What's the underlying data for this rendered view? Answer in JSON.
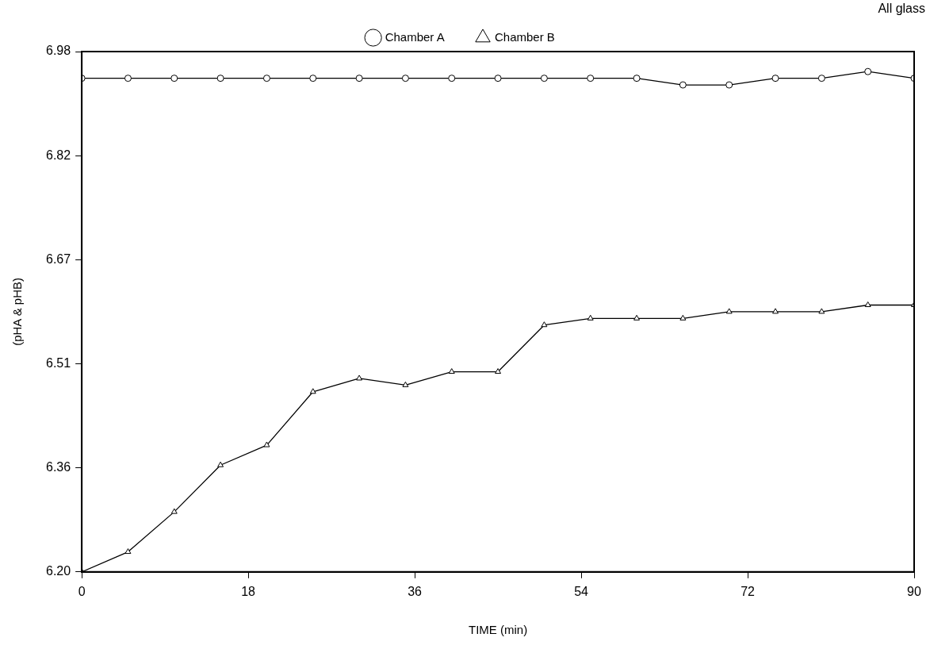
{
  "chart_data": {
    "type": "line",
    "xlabel": "TIME (min)",
    "ylabel": "(pHA & pHB)",
    "annotations": [
      "All glass"
    ],
    "x": [
      0,
      5,
      10,
      15,
      20,
      25,
      30,
      35,
      40,
      45,
      50,
      55,
      60,
      65,
      70,
      75,
      80,
      85,
      90
    ],
    "xlim": [
      0,
      90
    ],
    "xticks": [
      0,
      18,
      36,
      54,
      72,
      90
    ],
    "ylim": [
      6.2,
      6.98
    ],
    "yticks": [
      {
        "value": 6.2,
        "label": "6.20"
      },
      {
        "value": 6.356,
        "label": "6.36"
      },
      {
        "value": 6.512,
        "label": "6.51"
      },
      {
        "value": 6.668,
        "label": "6.67"
      },
      {
        "value": 6.824,
        "label": "6.82"
      },
      {
        "value": 6.98,
        "label": "6.98"
      }
    ],
    "grid": false,
    "legend": "top",
    "line_style": "solid",
    "series": [
      {
        "name": "Chamber A",
        "color": "#000000",
        "marker": "circle",
        "values": [
          6.94,
          6.94,
          6.94,
          6.94,
          6.94,
          6.94,
          6.94,
          6.94,
          6.94,
          6.94,
          6.94,
          6.94,
          6.94,
          6.93,
          6.93,
          6.94,
          6.94,
          6.95,
          6.94
        ]
      },
      {
        "name": "Chamber B",
        "color": "#000000",
        "marker": "triangle",
        "values": [
          6.2,
          6.23,
          6.29,
          6.36,
          6.39,
          6.47,
          6.49,
          6.48,
          6.5,
          6.5,
          6.57,
          6.58,
          6.58,
          6.58,
          6.59,
          6.59,
          6.59,
          6.6,
          6.6
        ]
      }
    ]
  }
}
